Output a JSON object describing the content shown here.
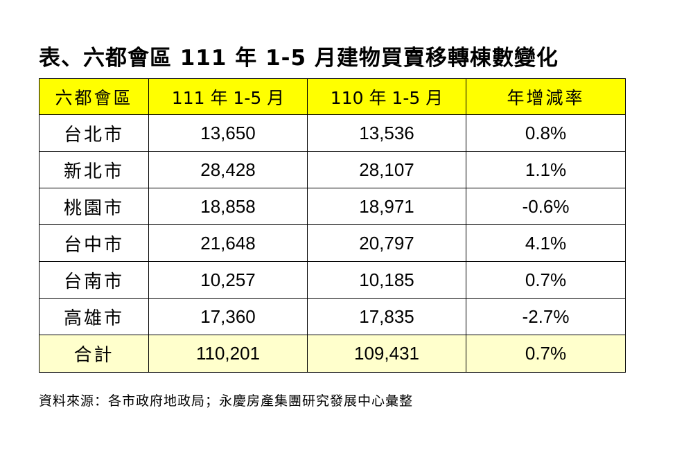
{
  "title": "表、六都會區 111 年 1-5 月建物買賣移轉棟數變化",
  "table": {
    "headers": [
      "六都會區",
      "111 年 1-5 月",
      "110 年 1-5 月",
      "年增減率"
    ],
    "rows": [
      {
        "region": "台北市",
        "y111": "13,650",
        "y110": "13,536",
        "rate": "0.8%"
      },
      {
        "region": "新北市",
        "y111": "28,428",
        "y110": "28,107",
        "rate": "1.1%"
      },
      {
        "region": "桃園市",
        "y111": "18,858",
        "y110": "18,971",
        "rate": "-0.6%"
      },
      {
        "region": "台中市",
        "y111": "21,648",
        "y110": "20,797",
        "rate": "4.1%"
      },
      {
        "region": "台南市",
        "y111": "10,257",
        "y110": "10,185",
        "rate": "0.7%"
      },
      {
        "region": "高雄市",
        "y111": "17,360",
        "y110": "17,835",
        "rate": "-2.7%"
      }
    ],
    "total": {
      "region": "合計",
      "y111": "110,201",
      "y110": "109,431",
      "rate": "0.7%"
    }
  },
  "source": "資料來源：各市政府地政局；永慶房產集團研究發展中心彙整",
  "colors": {
    "header_bg": "#ffff00",
    "total_bg": "#ffffcc"
  }
}
